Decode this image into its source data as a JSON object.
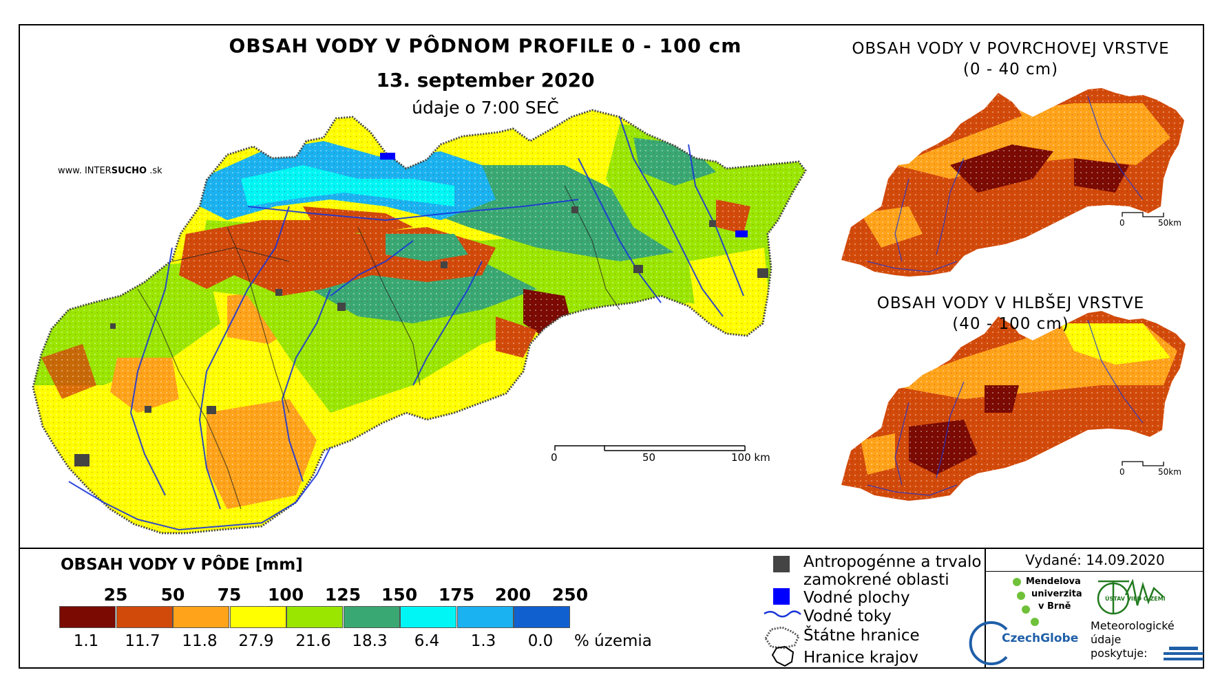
{
  "main": {
    "title": "OBSAH VODY V PÔDNOM PROFILE 0 - 100 cm",
    "date": "13. september 2020",
    "time": "údaje o 7:00 SEČ",
    "site_logo": {
      "prefix": "www. INTER",
      "accent": "SUCHO",
      "suffix": " .sk"
    },
    "scale": {
      "labels": [
        "0",
        "50",
        "100 km"
      ]
    }
  },
  "insets": [
    {
      "title_line1": "OBSAH VODY V POVRCHOVEJ VRSTVE",
      "title_line2": "(0 - 40 cm)",
      "scale_labels": [
        "0",
        "50km"
      ]
    },
    {
      "title_line1": "OBSAH VODY V HLBŠEJ VRSTVE",
      "title_line2": "(40 - 100 cm)",
      "scale_labels": [
        "0",
        "50km"
      ]
    }
  ],
  "legend": {
    "title": "OBSAH VODY V PÔDE [mm]",
    "thresholds": [
      "25",
      "50",
      "75",
      "100",
      "125",
      "150",
      "175",
      "200",
      "250"
    ],
    "classes": [
      {
        "color": "#7a0a02",
        "percent": "1.1"
      },
      {
        "color": "#d24a0a",
        "percent": "11.7"
      },
      {
        "color": "#ffa31a",
        "percent": "11.8"
      },
      {
        "color": "#ffff00",
        "percent": "27.9"
      },
      {
        "color": "#9ae600",
        "percent": "21.6"
      },
      {
        "color": "#39a872",
        "percent": "18.3"
      },
      {
        "color": "#00f5f5",
        "percent": "6.4"
      },
      {
        "color": "#1ab2f0",
        "percent": "1.3"
      },
      {
        "color": "#1060d0",
        "percent": "0.0"
      }
    ],
    "percent_unit": "% územia"
  },
  "key": {
    "anthropogenic_line1": "Antropogénne a trvalo",
    "anthropogenic_line2": "zamokrené oblasti",
    "water_areas": "Vodné plochy",
    "rivers": "Vodné toky",
    "state_border": "Štátne hranice",
    "region_border": "Hranice krajov"
  },
  "credits": {
    "issued": "Vydané: 14.09.2020",
    "mu_lines": [
      "Mendelova",
      "univerzita",
      "v Brně"
    ],
    "czechglobe": "CzechGlobe",
    "uvz": "ÚSTAV VIED O ZEMI",
    "meteo_lines": [
      "Meteorologické",
      "údaje",
      "poskytuje:"
    ]
  },
  "colors": {
    "dry": "#7a0a02",
    "red_orange": "#d24a0a",
    "orange": "#ffa31a",
    "yellow": "#ffff00",
    "lime": "#9ae600",
    "green": "#39a872",
    "cyan": "#00f5f5",
    "sky": "#1ab2f0",
    "blue": "#1060d0",
    "river": "#1a35d8",
    "urban": "#444444"
  }
}
